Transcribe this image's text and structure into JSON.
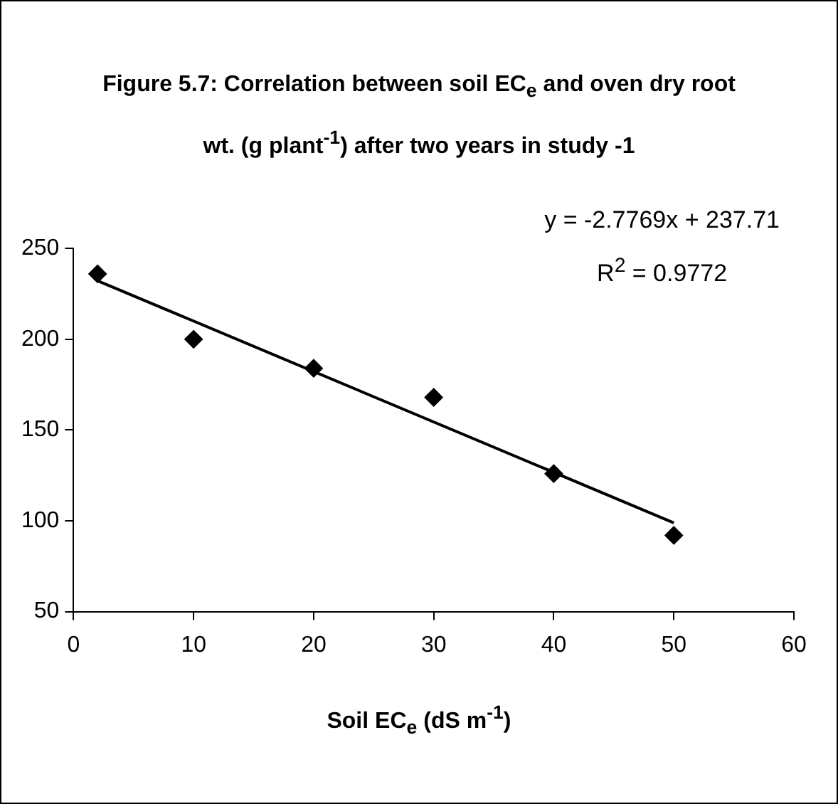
{
  "chart_data": {
    "type": "scatter",
    "title": "Figure 5.7: Correlation between soil EC$_{e}$ and oven dry root wt. (g plant$^{-1}$) after two years in study -1",
    "xlabel": "Soil EC$_{e}$ (dS m$^{-1}$)",
    "series": [
      {
        "color": "#000000",
        "marker": "diamond",
        "x": [
          2,
          10,
          20,
          30,
          40,
          50
        ],
        "values": [
          236,
          200,
          184,
          168,
          126,
          92
        ]
      },
      {
        "type": "line",
        "marker": "none",
        "color": "#000000",
        "x": [
          2,
          50
        ],
        "values": [
          232.2,
          98.9
        ]
      }
    ],
    "annotations": [
      "y = -2.7769x + 237.71",
      "R$^{2}$ = 0.9772"
    ],
    "xlim": [
      0,
      60
    ],
    "xticks": [
      0,
      10,
      20,
      30,
      40,
      50,
      60
    ],
    "ylim": [
      50,
      250
    ],
    "yticks": [
      50,
      100,
      150,
      200,
      250
    ],
    "grid": false,
    "legend": false
  }
}
